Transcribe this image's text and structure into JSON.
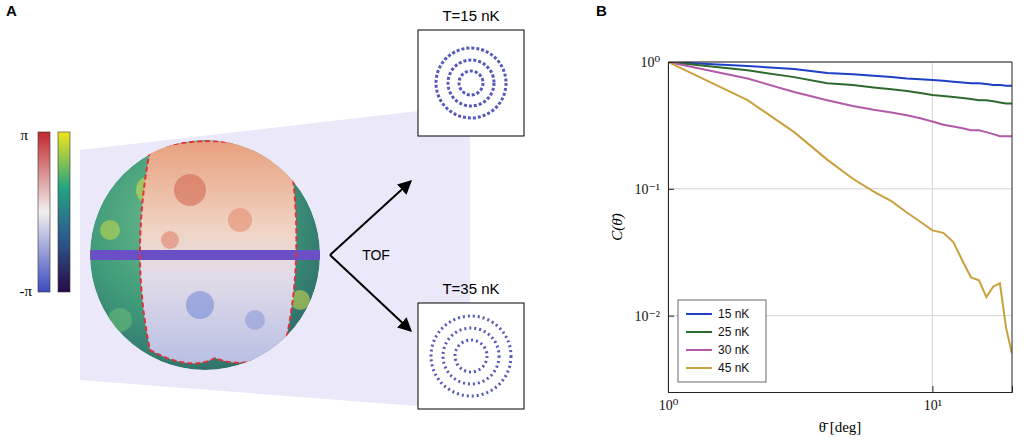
{
  "panel_a": {
    "label": "A",
    "colorbar": {
      "top": "π",
      "bottom": "-π"
    },
    "arrow_label": "TOF",
    "images": [
      {
        "title": "T=15 nK"
      },
      {
        "title": "T=35 nK"
      }
    ]
  },
  "chart_data": {
    "type": "line",
    "panel_label": "B",
    "x_label": "θ̄ [deg]",
    "y_label": "C(θ̄)",
    "log": true,
    "grid": true,
    "legend": "lower left",
    "xlim": [
      1,
      20
    ],
    "ylim": [
      0.0025,
      1
    ],
    "xticks": [
      {
        "value": 1,
        "label": "10⁰"
      },
      {
        "value": 10,
        "label": "10¹"
      }
    ],
    "yticks": [
      {
        "value": 0.01,
        "label": "10⁻²"
      },
      {
        "value": 0.1,
        "label": "10⁻¹"
      },
      {
        "value": 1,
        "label": "10⁰"
      }
    ],
    "x": [
      1,
      2,
      3,
      4,
      5,
      6,
      7,
      8,
      9,
      10,
      11,
      12,
      13,
      14,
      15,
      16,
      17,
      18,
      19,
      20
    ],
    "series": [
      {
        "name": "15 nK",
        "color": "#1f3fc4",
        "values": [
          1,
          0.93,
          0.88,
          0.82,
          0.8,
          0.78,
          0.76,
          0.74,
          0.73,
          0.72,
          0.71,
          0.7,
          0.69,
          0.68,
          0.68,
          0.67,
          0.66,
          0.66,
          0.65,
          0.65
        ]
      },
      {
        "name": "25 nK",
        "color": "#2d6a2d",
        "values": [
          1,
          0.86,
          0.76,
          0.68,
          0.66,
          0.63,
          0.61,
          0.59,
          0.57,
          0.55,
          0.54,
          0.53,
          0.52,
          0.51,
          0.5,
          0.5,
          0.49,
          0.48,
          0.47,
          0.47
        ]
      },
      {
        "name": "30 nK",
        "color": "#b25aa8",
        "values": [
          1,
          0.74,
          0.58,
          0.5,
          0.45,
          0.42,
          0.4,
          0.38,
          0.36,
          0.34,
          0.32,
          0.31,
          0.3,
          0.29,
          0.29,
          0.28,
          0.27,
          0.26,
          0.26,
          0.26
        ]
      },
      {
        "name": "45 nK",
        "color": "#c9a03e",
        "values": [
          1,
          0.5,
          0.28,
          0.17,
          0.12,
          0.095,
          0.08,
          0.065,
          0.055,
          0.047,
          0.045,
          0.038,
          0.027,
          0.02,
          0.019,
          0.014,
          0.017,
          0.018,
          0.008,
          0.005
        ]
      }
    ]
  }
}
